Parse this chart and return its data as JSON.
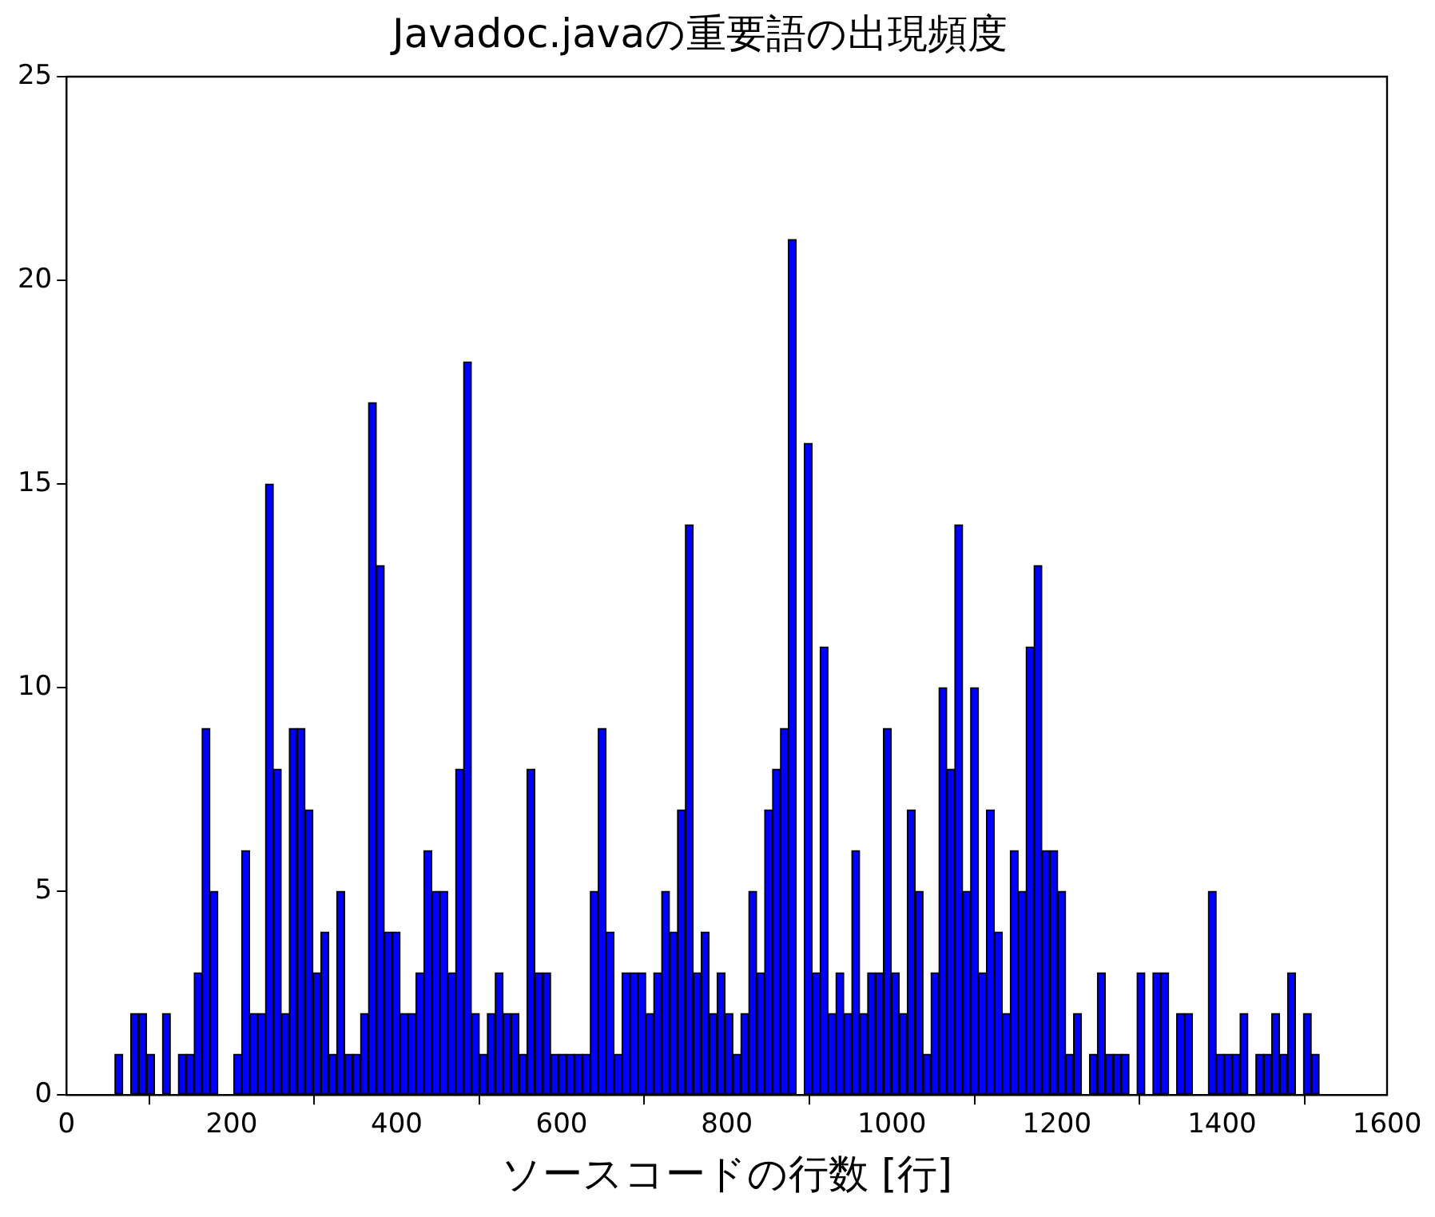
{
  "chart_data": {
    "type": "histogram",
    "title": "Javadoc.javaの重要語の出現頻度",
    "xlabel": "ソースコードの行数 [行]",
    "color": "#0000ff",
    "bins": [
      58.6,
      68.2,
      77.8,
      87.4,
      97,
      106.6,
      116.2,
      125.8,
      135.4,
      145,
      154.6,
      164.2,
      173.8,
      183.4,
      193,
      202.6,
      212.2,
      221.8,
      231.4,
      241,
      250.6,
      260.2,
      269.8,
      279.4,
      289,
      298.6,
      308.2,
      317.8,
      327.4,
      337,
      346.6,
      356.2,
      365.8,
      375.4,
      385,
      394.6,
      404.2,
      413.8,
      423.4,
      433,
      442.6,
      452.2,
      461.8,
      471.4,
      481,
      490.6,
      500.2,
      509.8,
      519.4,
      529,
      538.6,
      548.2,
      557.8,
      567.4,
      577,
      586.6,
      596.2,
      605.8,
      615.4,
      625,
      634.6,
      644.2,
      653.8,
      663.4,
      673,
      682.6,
      692.2,
      701.8,
      711.4,
      721,
      730.6,
      740.2,
      749.8,
      759.4,
      769,
      778.6,
      788.2,
      797.8,
      807.4,
      817,
      826.6,
      836.2,
      845.8,
      855.4,
      865,
      874.6,
      884.2,
      893.8,
      903.4,
      913,
      922.6,
      932.2,
      941.8,
      951.4,
      961,
      970.6,
      980.2,
      989.8,
      999.4,
      1009,
      1018.6,
      1028.2,
      1037.8,
      1047.4,
      1057,
      1066.6,
      1076.2,
      1085.8,
      1095.4,
      1105,
      1114.6,
      1124.2,
      1133.8,
      1143.4,
      1153,
      1162.6,
      1172.2,
      1181.8,
      1191.4,
      1201,
      1210.6,
      1220.2,
      1229.8,
      1239.4,
      1249,
      1258.6,
      1268.2,
      1277.8,
      1287.4,
      1297,
      1306.6,
      1316.2,
      1325.8,
      1335.4,
      1345,
      1354.6,
      1364.2,
      1373.8,
      1383.4,
      1393,
      1402.6,
      1412.2,
      1421.8,
      1431.4,
      1441,
      1450.6,
      1460.2,
      1469.8,
      1479.4,
      1489,
      1498.6,
      1508.2,
      1517.8
    ],
    "values": [
      1,
      0,
      2,
      2,
      1,
      0,
      2,
      0,
      1,
      1,
      3,
      9,
      5,
      0,
      0,
      1,
      6,
      2,
      2,
      15,
      8,
      2,
      9,
      9,
      7,
      3,
      4,
      1,
      5,
      1,
      1,
      2,
      17,
      13,
      4,
      4,
      2,
      2,
      3,
      6,
      5,
      5,
      3,
      8,
      18,
      2,
      1,
      2,
      3,
      2,
      2,
      1,
      8,
      3,
      3,
      1,
      1,
      1,
      1,
      1,
      5,
      9,
      4,
      1,
      3,
      3,
      3,
      2,
      3,
      5,
      4,
      7,
      14,
      3,
      4,
      2,
      3,
      2,
      1,
      2,
      5,
      3,
      7,
      8,
      9,
      21,
      0,
      16,
      3,
      11,
      2,
      3,
      2,
      6,
      2,
      3,
      3,
      9,
      3,
      2,
      7,
      5,
      1,
      3,
      10,
      8,
      14,
      5,
      10,
      3,
      7,
      4,
      2,
      6,
      5,
      11,
      13,
      6,
      6,
      5,
      1,
      2,
      0,
      1,
      3,
      1,
      1,
      1,
      0,
      3,
      0,
      3,
      3,
      0,
      2,
      2,
      0,
      0,
      5,
      1,
      1,
      1,
      2,
      0,
      1,
      1,
      2,
      1,
      3,
      0,
      2,
      1
    ],
    "xlim": [
      0,
      1600
    ],
    "xticks": [
      0,
      200,
      400,
      600,
      800,
      1000,
      1200,
      1400,
      1600
    ],
    "ylim": [
      0,
      25
    ],
    "yticks": [
      0,
      5,
      10,
      15,
      20,
      25
    ]
  }
}
